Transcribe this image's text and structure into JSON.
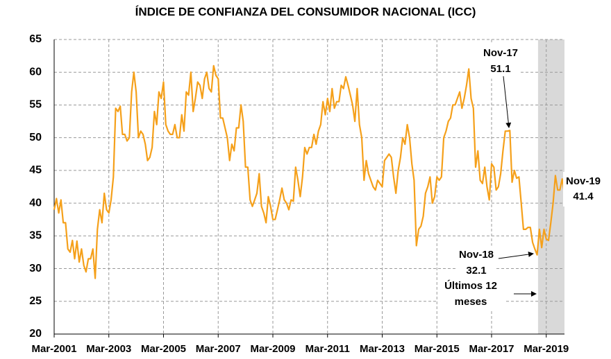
{
  "chart_data": {
    "type": "line",
    "title": "ÍNDICE DE CONFIANZA DEL CONSUMIDOR NACIONAL (ICC)",
    "categories": [
      "Mar-2001",
      null,
      null,
      null,
      null,
      null,
      null,
      null,
      null,
      null,
      null,
      null,
      null,
      null,
      null,
      null,
      null,
      null,
      null,
      null,
      null,
      null,
      null,
      null,
      "Mar-2003",
      null,
      null,
      null,
      null,
      null,
      null,
      null,
      null,
      null,
      null,
      null,
      null,
      null,
      null,
      null,
      null,
      null,
      null,
      null,
      null,
      null,
      null,
      null,
      "Mar-2005",
      null,
      null,
      null,
      null,
      null,
      null,
      null,
      null,
      null,
      null,
      null,
      null,
      null,
      null,
      null,
      null,
      null,
      null,
      null,
      null,
      null,
      null,
      null,
      "Mar-2007",
      null,
      null,
      null,
      null,
      null,
      null,
      null,
      null,
      null,
      null,
      null,
      null,
      null,
      null,
      null,
      null,
      null,
      null,
      null,
      null,
      null,
      null,
      null,
      "Mar-2009",
      null,
      null,
      null,
      null,
      null,
      null,
      null,
      null,
      null,
      null,
      null,
      null,
      null,
      null,
      null,
      null,
      null,
      null,
      null,
      null,
      null,
      null,
      null,
      "Mar-2011",
      null,
      null,
      null,
      null,
      null,
      null,
      null,
      null,
      null,
      null,
      null,
      null,
      null,
      null,
      null,
      null,
      null,
      null,
      null,
      null,
      null,
      null,
      null,
      "Mar-2013",
      null,
      null,
      null,
      null,
      null,
      null,
      null,
      null,
      null,
      null,
      null,
      null,
      null,
      null,
      null,
      null,
      null,
      null,
      null,
      null,
      null,
      null,
      null,
      "Mar-2015",
      null,
      null,
      null,
      null,
      null,
      null,
      null,
      null,
      null,
      null,
      null,
      null,
      null,
      null,
      null,
      null,
      null,
      null,
      null,
      null,
      null,
      null,
      null,
      "Mar-2017",
      null,
      null,
      null,
      null,
      null,
      null,
      null,
      null,
      null,
      null,
      null,
      null,
      null,
      null,
      null,
      null,
      null,
      null,
      null,
      null,
      null,
      null,
      null,
      "Mar-2019",
      null,
      null,
      null,
      null,
      null,
      null,
      null,
      null
    ],
    "series": [
      {
        "name": "ICC",
        "color": "#f5a01a",
        "values": [
          39,
          40.7,
          38.5,
          40.5,
          37,
          37,
          33,
          32.5,
          34.3,
          31.5,
          34.2,
          31,
          33,
          30.5,
          29.5,
          31.5,
          31.5,
          33,
          28.5,
          36,
          39,
          37,
          41.5,
          39,
          38.5,
          40.5,
          44,
          54.5,
          54,
          54.8,
          50.5,
          50.5,
          49.5,
          50,
          57,
          60,
          57,
          50,
          51,
          50.5,
          49,
          46.5,
          47,
          48.5,
          54,
          52,
          57,
          56,
          58.5,
          52,
          51,
          50.5,
          50.5,
          52,
          50,
          50,
          53.5,
          51,
          57,
          56.5,
          60,
          54,
          56,
          58.5,
          58,
          56,
          59,
          60,
          57.5,
          57,
          61,
          59.5,
          59,
          53,
          53,
          51.5,
          50,
          46.5,
          49,
          48,
          51.5,
          51.5,
          55,
          52.5,
          45.5,
          45.5,
          40.5,
          39.5,
          40.5,
          41.5,
          44.5,
          39.5,
          38.5,
          37,
          41,
          39.5,
          37.5,
          37.5,
          39,
          40.5,
          42.3,
          40.5,
          40,
          39,
          40.5,
          40.3,
          45.5,
          43.5,
          41,
          44,
          48.5,
          47.5,
          48.5,
          48.5,
          50.5,
          49,
          51,
          52,
          55.5,
          53.5,
          56,
          54,
          57.5,
          54.5,
          55.5,
          55.5,
          58,
          57.5,
          59.3,
          58,
          56.5,
          55,
          52.5,
          57.5,
          52,
          50,
          43.5,
          46.5,
          44.5,
          43.5,
          42.5,
          42,
          43.5,
          43,
          42.5,
          46.5,
          47,
          47.5,
          47,
          44,
          41.5,
          45,
          47,
          50,
          49,
          52,
          50,
          46,
          43.5,
          33.5,
          36,
          36.5,
          38,
          41.5,
          42.5,
          44,
          40,
          41,
          44,
          43.5,
          44,
          50,
          51,
          52.5,
          53,
          55,
          55,
          56,
          57,
          54.5,
          56,
          58,
          60.5,
          56,
          54.5,
          45.5,
          48,
          43.5,
          43,
          45.5,
          42.5,
          40.5,
          46,
          45.5,
          42,
          42.5,
          44.5,
          48,
          51,
          51,
          51.1,
          43.2,
          45,
          43.8,
          44,
          40,
          36,
          36,
          36.3,
          36.3,
          34,
          33,
          32.1,
          36,
          33.2,
          36,
          34.5,
          34.3,
          37,
          40,
          44.2,
          42,
          42,
          43.7,
          41.4
        ]
      }
    ],
    "ylim": [
      20,
      65
    ],
    "yticks": [
      20,
      25,
      30,
      35,
      40,
      45,
      50,
      55,
      60,
      65
    ],
    "grid": true,
    "annotations": [
      {
        "date": "Nov-17",
        "value": 51.1
      },
      {
        "date": "Nov-18",
        "value": 32.1
      },
      {
        "date": "Nov-19",
        "value": 41.4
      }
    ],
    "shaded_note": [
      "Últimos 12",
      "meses"
    ]
  }
}
